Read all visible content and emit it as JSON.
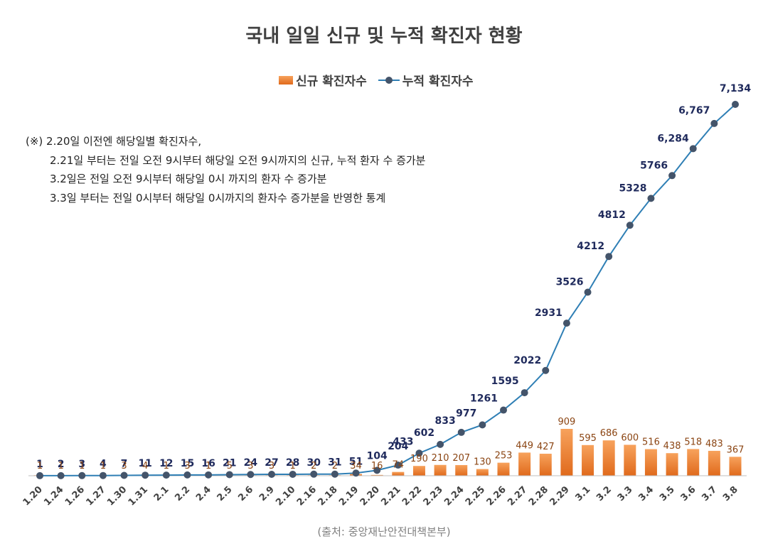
{
  "title": "국내 일일 신규 및 누적 확진자 현황",
  "legend": {
    "new": "신규 확진자수",
    "cumulative": "누적 확진자수"
  },
  "note": {
    "lines": [
      "(※)  2.20일 이전엔 해당일별 확진자수,",
      "2.21일 부터는 전일 오전 9시부터 해당일 오전 9시까지의 신규, 누적 환자 수 증가분",
      "3.2일은 전일 오전 9시부터 해당일 0시 까지의 환자 수 증가분",
      "3.3일 부터는 전일 0시부터 해당일 0시까지의 환자수 증가분을 반영한 통계"
    ]
  },
  "source": "(출처: 중앙재난안전대책본부)",
  "colors": {
    "bar_top": "#f7a25c",
    "bar_bottom": "#e06a1c",
    "line": "#2f7fb5",
    "marker": "#44546a",
    "cum_label": "#1f2a5c",
    "new_label": "#8b4513"
  },
  "chart_data": {
    "type": "bar",
    "categories": [
      "1.20",
      "1.24",
      "1.26",
      "1.27",
      "1.30",
      "1.31",
      "2.1",
      "2.2",
      "2.4",
      "2.5",
      "2.6",
      "2.9",
      "2.10",
      "2.16",
      "2.18",
      "2.19",
      "2.20",
      "2.21",
      "2.22",
      "2.23",
      "2.24",
      "2.25",
      "2.26",
      "2.27",
      "2.28",
      "2.29",
      "3.1",
      "3.2",
      "3.3",
      "3.4",
      "3.5",
      "3.6",
      "3.7",
      "3.8"
    ],
    "series": [
      {
        "name": "신규 확진자수",
        "type": "bar",
        "values": [
          1,
          1,
          1,
          1,
          3,
          4,
          1,
          3,
          1,
          5,
          3,
          3,
          1,
          2,
          2,
          34,
          16,
          74,
          190,
          210,
          207,
          130,
          253,
          449,
          427,
          909,
          595,
          686,
          600,
          516,
          438,
          518,
          483,
          367
        ]
      },
      {
        "name": "누적 확진자수",
        "type": "line",
        "values": [
          1,
          2,
          3,
          4,
          7,
          11,
          12,
          15,
          16,
          21,
          24,
          27,
          28,
          30,
          31,
          51,
          104,
          204,
          433,
          602,
          833,
          977,
          1261,
          1595,
          2022,
          2931,
          3526,
          4212,
          4812,
          5328,
          5766,
          6284,
          6767,
          7134
        ],
        "labels": [
          "1",
          "2",
          "3",
          "4",
          "7",
          "11",
          "12",
          "15",
          "16",
          "21",
          "24",
          "27",
          "28",
          "30",
          "31",
          "51",
          "104",
          "204",
          "433",
          "602",
          "833",
          "977",
          "1261",
          "1595",
          "2022",
          "2931",
          "3526",
          "4212",
          "4812",
          "5328",
          "5766",
          "6,284",
          "6,767",
          "7,134"
        ]
      }
    ],
    "xlabel": "",
    "ylabel": "",
    "grid": false,
    "legend_position": "top"
  }
}
